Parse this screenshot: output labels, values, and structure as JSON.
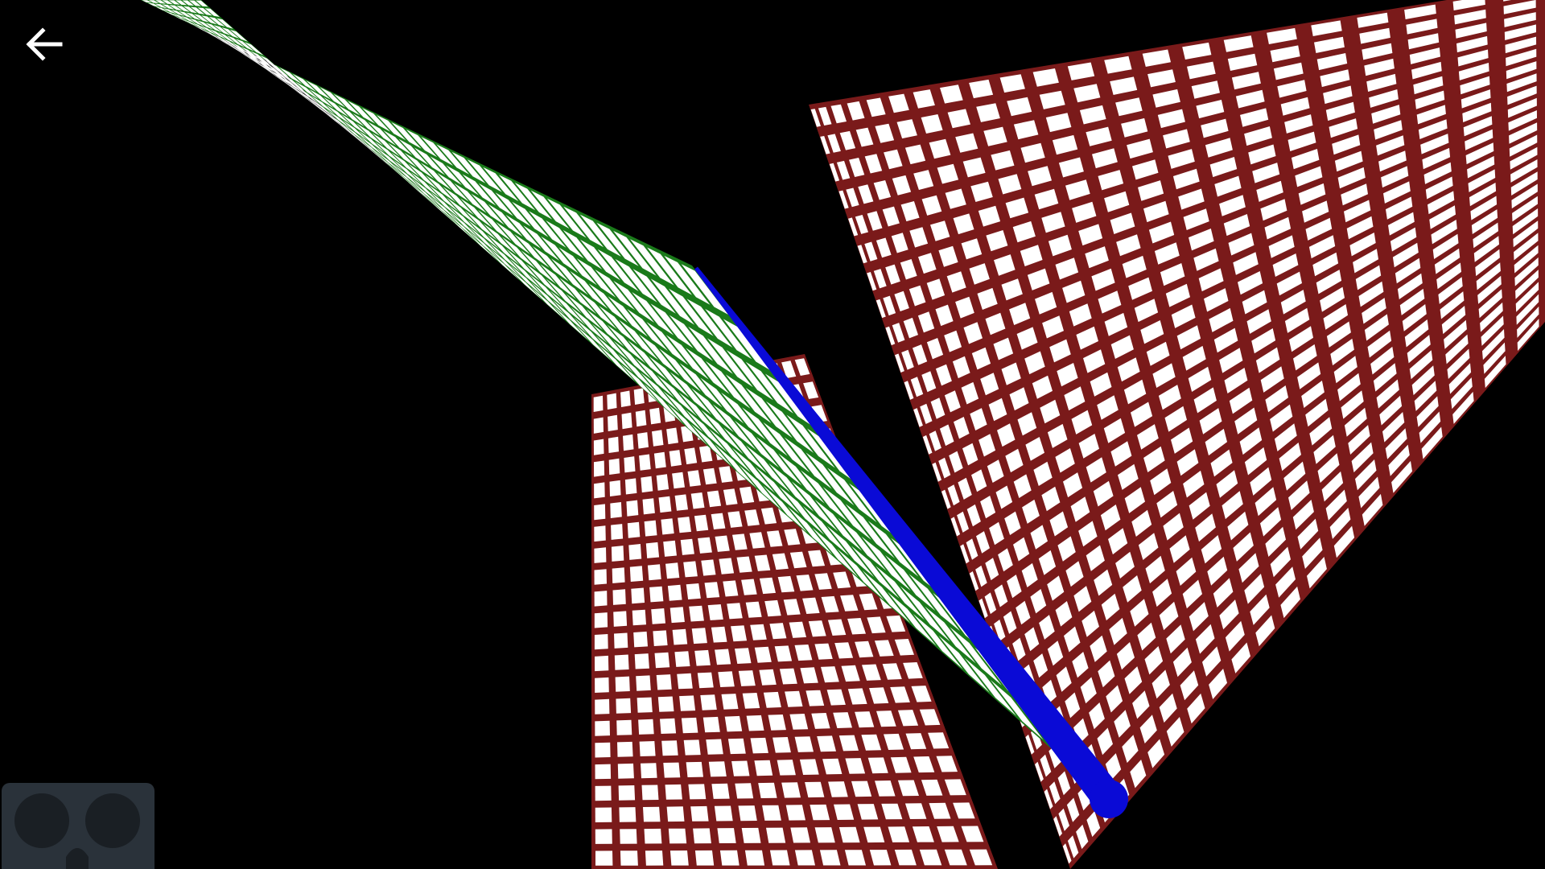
{
  "app": {
    "background": "#000000"
  },
  "toolbar": {
    "back_icon": "arrow-left-icon",
    "back_icon_color": "#ffffff"
  },
  "vr_mode": {
    "icon": "cardboard-viewer-icon",
    "button_color": "#2a323a",
    "icon_color": "#1a1f24"
  },
  "scene": {
    "red_plane": {
      "fill": "#ffffff",
      "grid_color": "#7a1a1a"
    },
    "green_plane": {
      "fill": "#ffffff",
      "grid_color": "#1a7a1a"
    },
    "intersection_line": {
      "color": "#0a0ad6"
    }
  }
}
